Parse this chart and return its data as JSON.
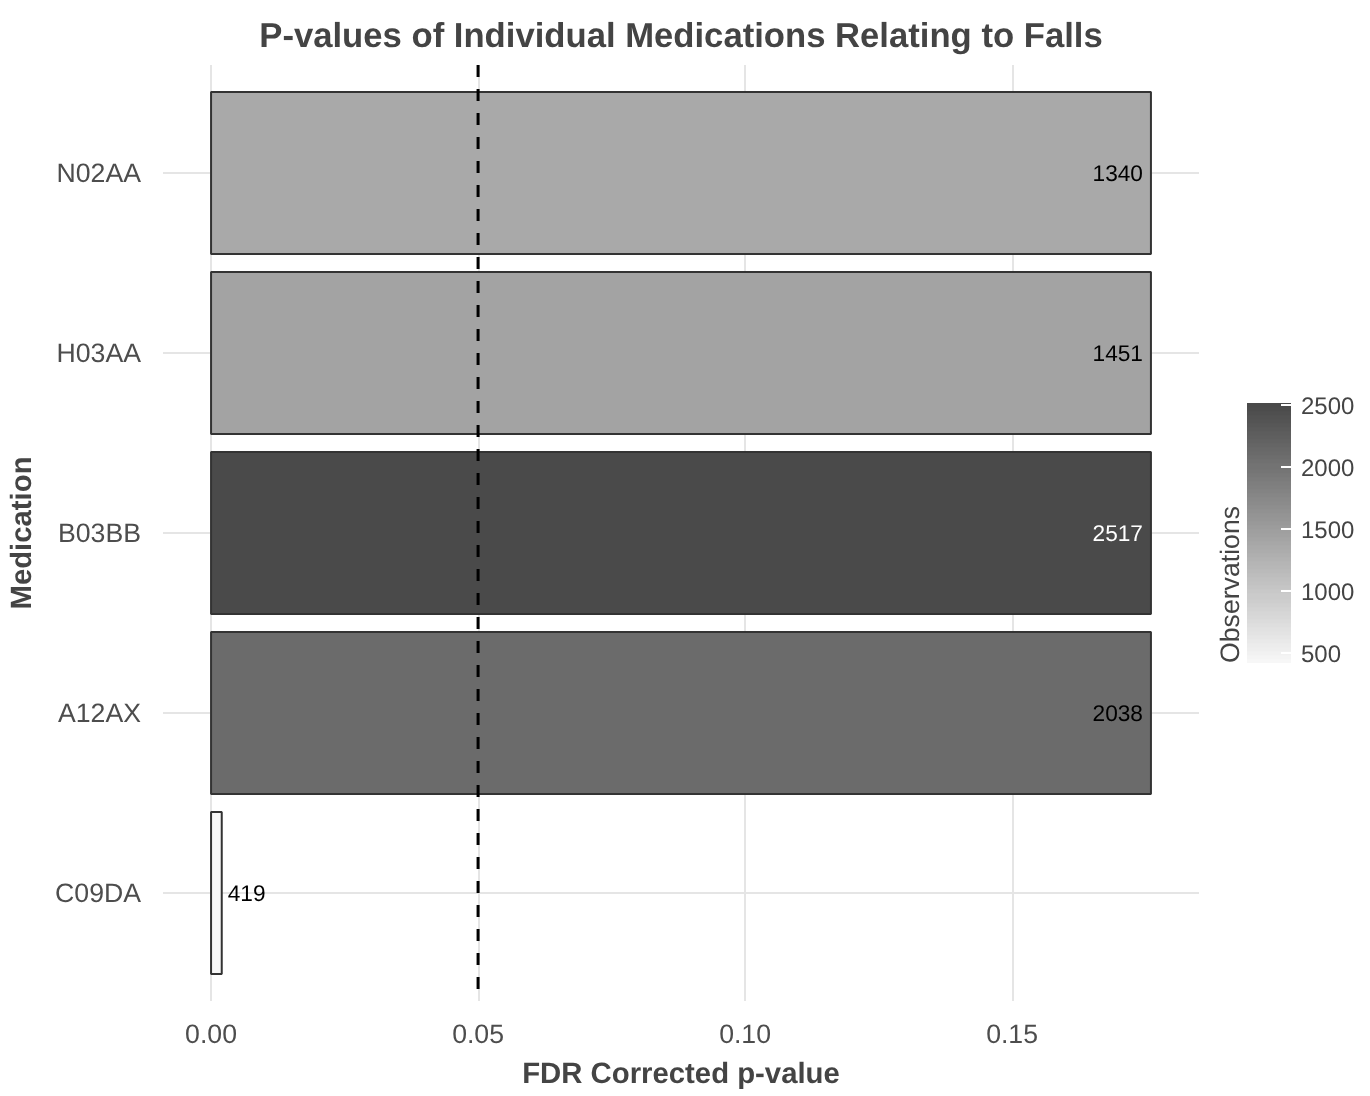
{
  "chart_data": {
    "type": "bar",
    "orientation": "horizontal",
    "title": "P-values of Individual Medications Relating to Falls",
    "xlabel": "FDR Corrected p-value",
    "ylabel": "Medication",
    "categories": [
      "N02AA",
      "H03AA",
      "B03BB",
      "A12AX",
      "C09DA"
    ],
    "values": [
      0.176,
      0.176,
      0.176,
      0.176,
      0.002
    ],
    "cvalues": [
      1340,
      1451,
      2517,
      2038,
      419
    ],
    "colors": [
      "#a9a9a9",
      "#a3a3a3",
      "#4a4a4a",
      "#6b6b6b",
      "#f7f7f7"
    ],
    "annotations": [
      "1340",
      "1451",
      "2517",
      "2038",
      "419"
    ],
    "clabel": "Observations",
    "clim": [
      419,
      2517
    ],
    "cticks": [
      500,
      1000,
      1500,
      2000,
      2500
    ],
    "xlim": [
      -0.009,
      0.185
    ],
    "xticks": [
      {
        "value": 0,
        "label": "0.00"
      },
      0.05,
      {
        "value": 0.1,
        "label": "0.10"
      },
      0.15
    ],
    "ref_lines": [
      {
        "axis": "x",
        "value": 0.05,
        "line_style": "dashed",
        "color": "#000000"
      }
    ],
    "grid": true
  }
}
